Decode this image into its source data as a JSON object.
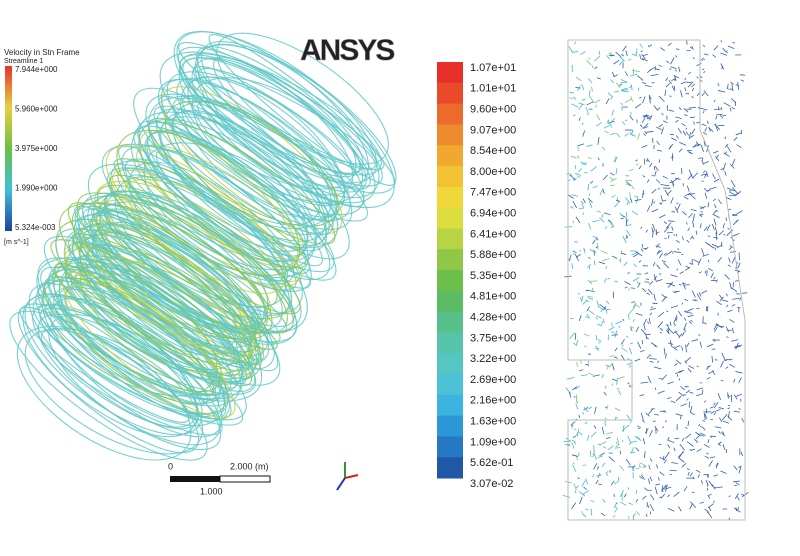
{
  "legend": {
    "title": "Velocity in Stn Frame",
    "subtitle": "Streamline 1",
    "labels": [
      "7.944e+000",
      "5.960e+000",
      "3.975e+000",
      "1.990e+000",
      "5.324e-003"
    ],
    "unit": "[m s^-1]"
  },
  "logo": "ANSYS",
  "scale_bar": {
    "zero": "0",
    "length": "2.000 (m)",
    "half": "1.000"
  },
  "colorbar": {
    "labels": [
      "1.07e+01",
      "1.01e+01",
      "9.60e+00",
      "9.07e+00",
      "8.54e+00",
      "8.00e+00",
      "7.47e+00",
      "6.94e+00",
      "6.41e+00",
      "5.88e+00",
      "5.35e+00",
      "4.81e+00",
      "4.28e+00",
      "3.75e+00",
      "3.22e+00",
      "2.69e+00",
      "2.16e+00",
      "1.63e+00",
      "1.09e+00",
      "5.62e-01",
      "3.07e-02"
    ]
  }
}
